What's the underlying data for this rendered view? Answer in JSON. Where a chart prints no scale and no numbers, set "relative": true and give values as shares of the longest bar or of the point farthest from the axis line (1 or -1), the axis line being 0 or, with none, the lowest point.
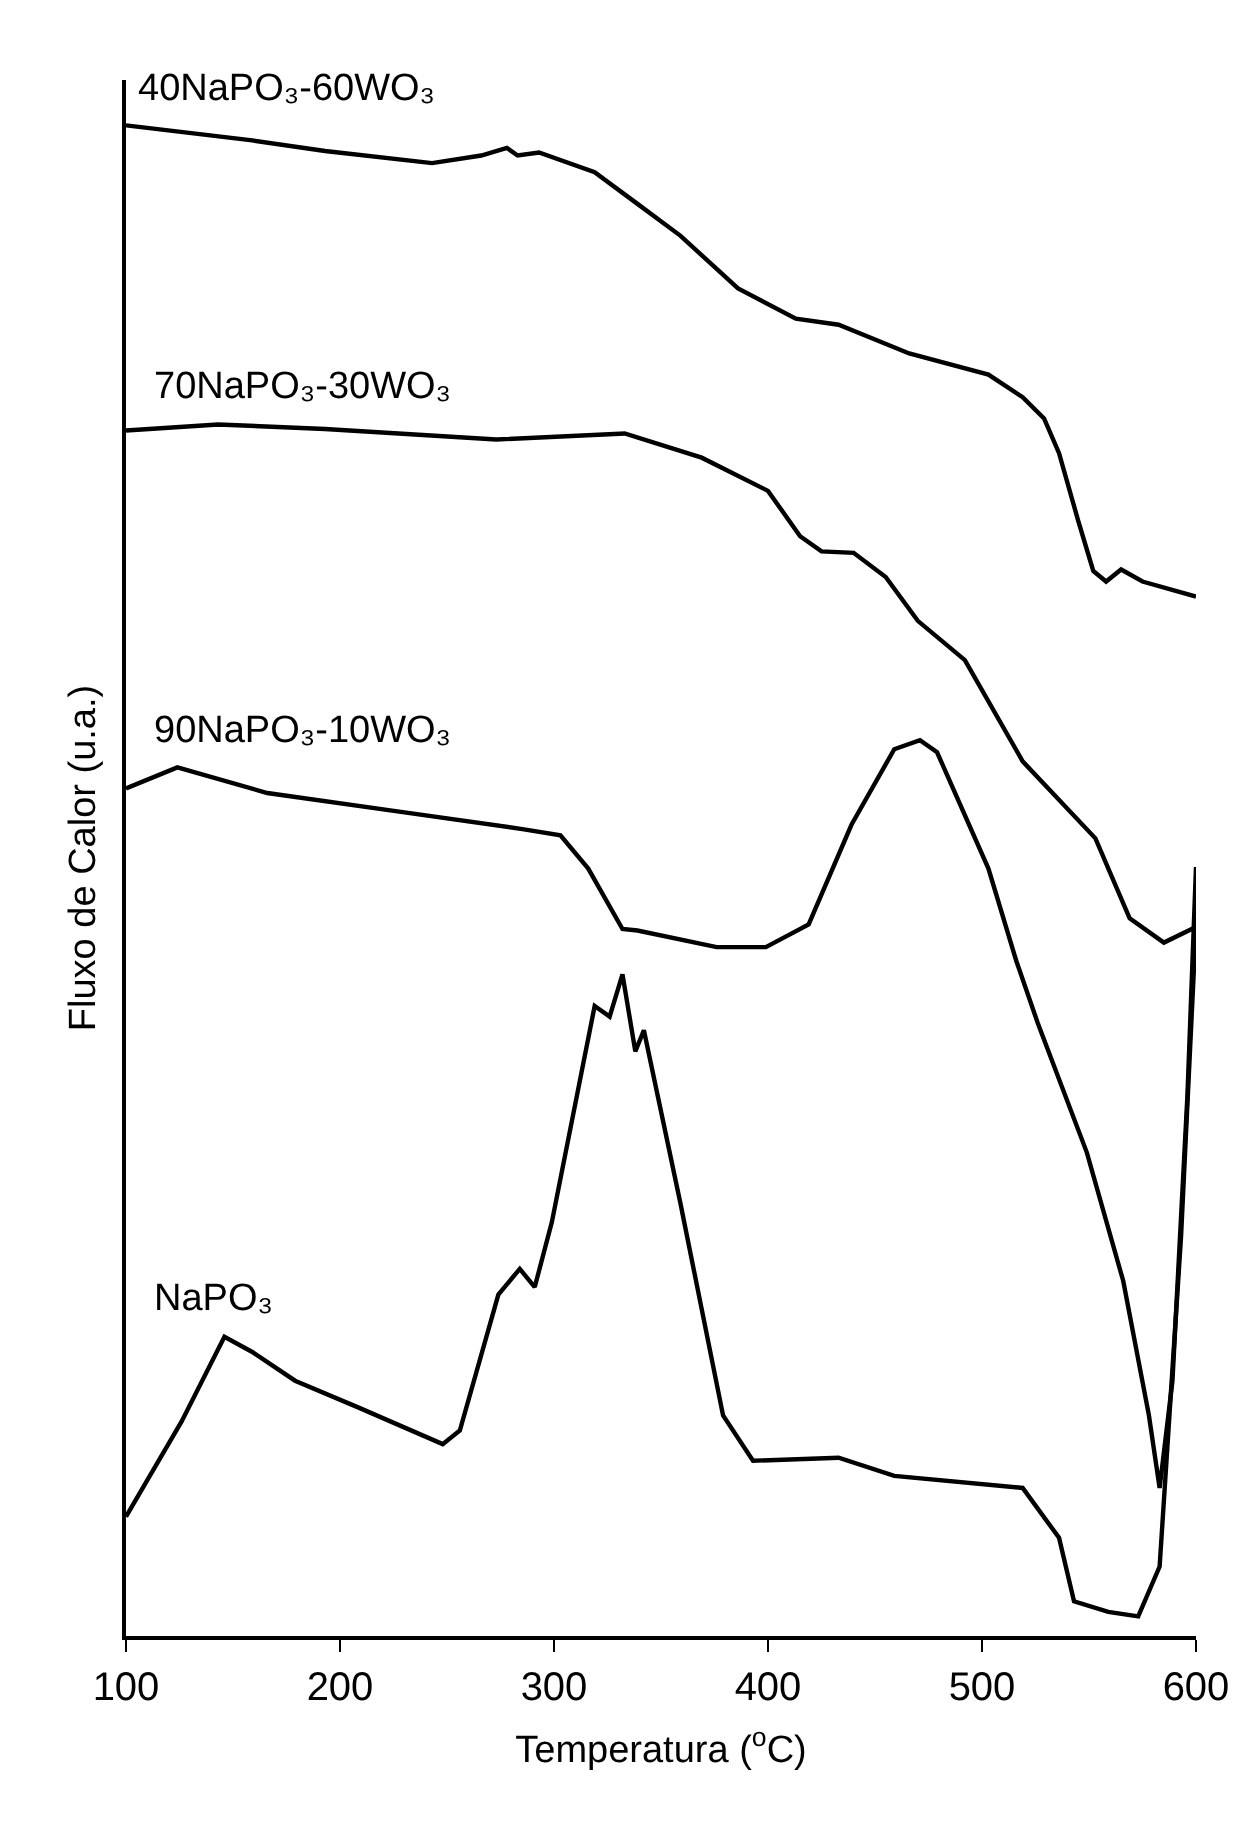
{
  "chart_data": {
    "type": "line",
    "relative": true,
    "xlabel": "Temperatura ($^{o}$C)",
    "ylabel": "Fluxo de Calor (u.a.)",
    "xlim": [
      100,
      600
    ],
    "xticks": [
      100,
      200,
      300,
      400,
      500,
      600
    ],
    "legend": false,
    "marker": "none",
    "line_style": "solid",
    "series": [
      {
        "name": "40NaPO₃-60WO₃",
        "color": "#000000",
        "x": [
          100,
          159,
          193,
          243,
          266,
          278,
          283,
          293,
          319,
          339,
          359,
          386,
          413,
          433,
          466,
          503,
          519,
          529,
          536,
          545,
          552,
          558,
          565,
          575,
          600
        ],
        "values": [
          1.0,
          0.99,
          0.983,
          0.975,
          0.98,
          0.985,
          0.98,
          0.982,
          0.969,
          0.948,
          0.927,
          0.892,
          0.872,
          0.868,
          0.849,
          0.835,
          0.82,
          0.806,
          0.783,
          0.738,
          0.705,
          0.698,
          0.706,
          0.698,
          0.688
        ]
      },
      {
        "name": "70NaPO₃-30WO₃",
        "color": "#000000",
        "x": [
          100,
          143,
          193,
          273,
          333,
          369,
          400,
          415,
          425,
          440,
          455,
          470,
          492,
          519,
          553,
          569,
          585,
          598,
          600
        ],
        "values": [
          0.798,
          0.802,
          0.799,
          0.792,
          0.796,
          0.78,
          0.758,
          0.728,
          0.718,
          0.717,
          0.701,
          0.672,
          0.646,
          0.579,
          0.528,
          0.475,
          0.459,
          0.468,
          0.47
        ]
      },
      {
        "name": "90NaPO₃-10WO₃",
        "color": "#000000",
        "x": [
          100,
          124,
          166,
          226,
          286,
          303,
          316,
          332,
          339,
          376,
          399,
          419,
          439,
          459,
          471,
          479,
          503,
          516,
          526,
          549,
          566,
          578,
          583,
          589,
          596,
          600
        ],
        "values": [
          0.561,
          0.575,
          0.558,
          0.546,
          0.534,
          0.53,
          0.508,
          0.468,
          0.467,
          0.456,
          0.456,
          0.471,
          0.537,
          0.587,
          0.593,
          0.585,
          0.508,
          0.447,
          0.406,
          0.32,
          0.235,
          0.146,
          0.098,
          0.169,
          0.358,
          0.509
        ]
      },
      {
        "name": "NaPO₃",
        "color": "#000000",
        "x": [
          100,
          126,
          146,
          159,
          179,
          209,
          248,
          256,
          274,
          284,
          291,
          299,
          319,
          326,
          332,
          338,
          342,
          359,
          379,
          393,
          433,
          459,
          519,
          536,
          543,
          559,
          573,
          583,
          593,
          600
        ],
        "values": [
          0.079,
          0.142,
          0.198,
          0.188,
          0.169,
          0.151,
          0.127,
          0.136,
          0.226,
          0.243,
          0.231,
          0.274,
          0.417,
          0.41,
          0.438,
          0.387,
          0.401,
          0.287,
          0.146,
          0.116,
          0.118,
          0.106,
          0.098,
          0.065,
          0.023,
          0.016,
          0.013,
          0.046,
          0.264,
          0.47
        ]
      }
    ]
  }
}
